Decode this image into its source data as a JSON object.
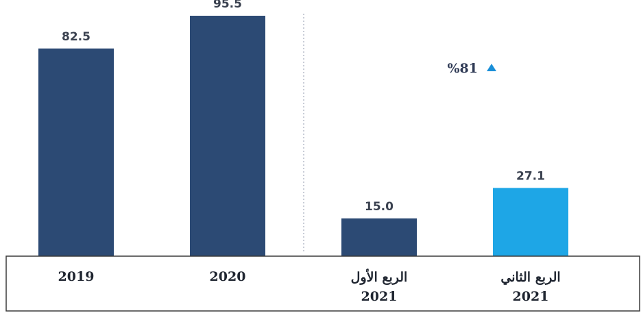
{
  "chart_data": {
    "type": "bar",
    "categories": [
      [
        "2019"
      ],
      [
        "2020"
      ],
      [
        "الربع الأول",
        "2021"
      ],
      [
        "الربع الثاني",
        "2021"
      ]
    ],
    "values": [
      82.5,
      95.5,
      15.0,
      27.1
    ],
    "value_labels": [
      "82.5",
      "95.5",
      "15.0",
      "27.1"
    ],
    "bar_colors": [
      "#2c4a74",
      "#2c4a74",
      "#2c4a74",
      "#1ea6e6"
    ],
    "ylim": [
      0,
      95.5
    ],
    "annotation": {
      "text": "%81",
      "direction": "up",
      "color": "#1a8fd8"
    },
    "separator": "dotted vertical line between 2020 and quarterly bars",
    "grid": false
  }
}
